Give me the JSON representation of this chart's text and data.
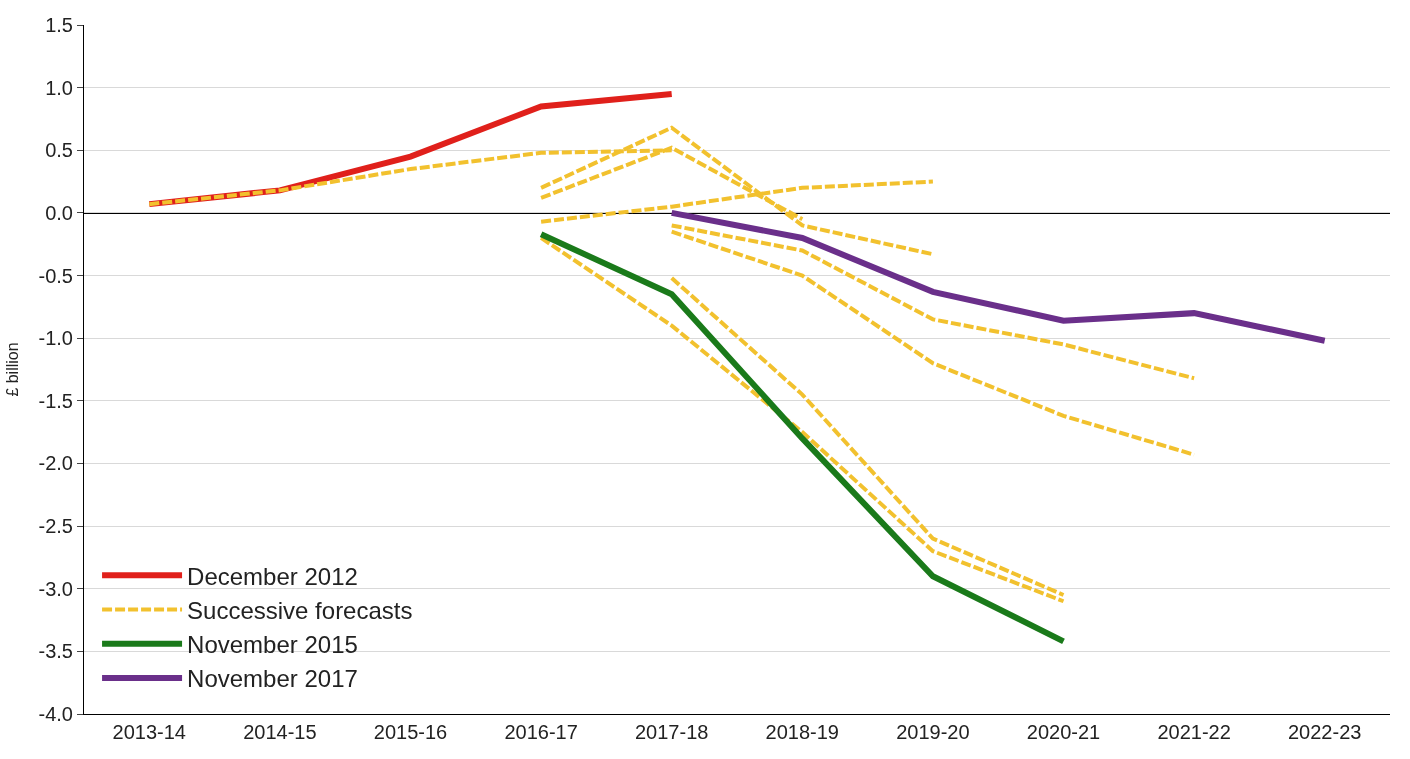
{
  "chart_data": {
    "type": "line",
    "ylabel": "£ billion",
    "categories": [
      "2013-14",
      "2014-15",
      "2015-16",
      "2016-17",
      "2017-18",
      "2018-19",
      "2019-20",
      "2020-21",
      "2021-22",
      "2022-23"
    ],
    "ylim": [
      -4.0,
      1.5
    ],
    "yticks": [
      {
        "value": -4,
        "label": "-4.0"
      },
      {
        "value": -3.5,
        "label": "-3.5"
      },
      {
        "value": -3,
        "label": "-3.0"
      },
      {
        "value": -2.5,
        "label": "-2.5"
      },
      {
        "value": -2,
        "label": "-2.0"
      },
      {
        "value": -1.5,
        "label": "-1.5"
      },
      {
        "value": -1,
        "label": "-1.0"
      },
      {
        "value": -0.5,
        "label": "-0.5"
      },
      {
        "value": 0,
        "label": "0.0"
      },
      {
        "value": 0.5,
        "label": "0.5"
      },
      {
        "value": 1,
        "label": "1.0"
      },
      {
        "value": 1.5,
        "label": "1.5"
      }
    ],
    "grid": "y",
    "legend": "bottom left",
    "marker": "none",
    "ref_lines": [
      {
        "axis": "y",
        "value": 0,
        "color": "#000000"
      }
    ],
    "series": [
      {
        "name": "December 2012",
        "color": "#e0201b",
        "line_style": "solid",
        "values": [
          0.07,
          0.18,
          0.45,
          0.85,
          0.95,
          null,
          null,
          null,
          null,
          null
        ]
      },
      {
        "name": "Successive forecasts",
        "color": "#f2c12e",
        "line_style": "dashed",
        "values": [
          0.07,
          0.18,
          0.35,
          0.48,
          0.5,
          null,
          null,
          null,
          null,
          null
        ]
      },
      {
        "color": "#f2c12e",
        "line_style": "dashed",
        "values": [
          null,
          null,
          null,
          0.2,
          0.68,
          -0.1,
          -0.33,
          null,
          null,
          null
        ]
      },
      {
        "color": "#f2c12e",
        "line_style": "dashed",
        "values": [
          null,
          null,
          null,
          0.12,
          0.52,
          -0.05,
          null,
          null,
          null,
          null
        ]
      },
      {
        "color": "#f2c12e",
        "line_style": "dashed",
        "values": [
          null,
          null,
          null,
          -0.07,
          0.05,
          0.2,
          0.25,
          null,
          null,
          null
        ]
      },
      {
        "color": "#f2c12e",
        "line_style": "dashed",
        "values": [
          null,
          null,
          null,
          null,
          -0.1,
          -0.3,
          -0.85,
          -1.05,
          -1.32,
          null
        ]
      },
      {
        "color": "#f2c12e",
        "line_style": "dashed",
        "values": [
          null,
          null,
          null,
          null,
          -0.15,
          -0.5,
          -1.2,
          -1.62,
          -1.93,
          null
        ]
      },
      {
        "color": "#f2c12e",
        "line_style": "dashed",
        "values": [
          null,
          null,
          null,
          -0.2,
          -0.9,
          -1.75,
          -2.7,
          -3.1,
          null,
          null
        ]
      },
      {
        "color": "#f2c12e",
        "line_style": "dashed",
        "values": [
          null,
          null,
          null,
          null,
          -0.52,
          -1.45,
          -2.6,
          -3.05,
          null,
          null
        ]
      },
      {
        "name": "November 2015",
        "color": "#1a7a1a",
        "line_style": "solid",
        "values": [
          null,
          null,
          null,
          -0.17,
          -0.65,
          -1.8,
          -2.9,
          -3.42,
          null,
          null
        ]
      },
      {
        "name": "November 2017",
        "color": "#6a2f8a",
        "line_style": "solid",
        "values": [
          null,
          null,
          null,
          null,
          0.0,
          -0.2,
          -0.63,
          -0.86,
          -0.8,
          -1.02
        ]
      }
    ]
  }
}
